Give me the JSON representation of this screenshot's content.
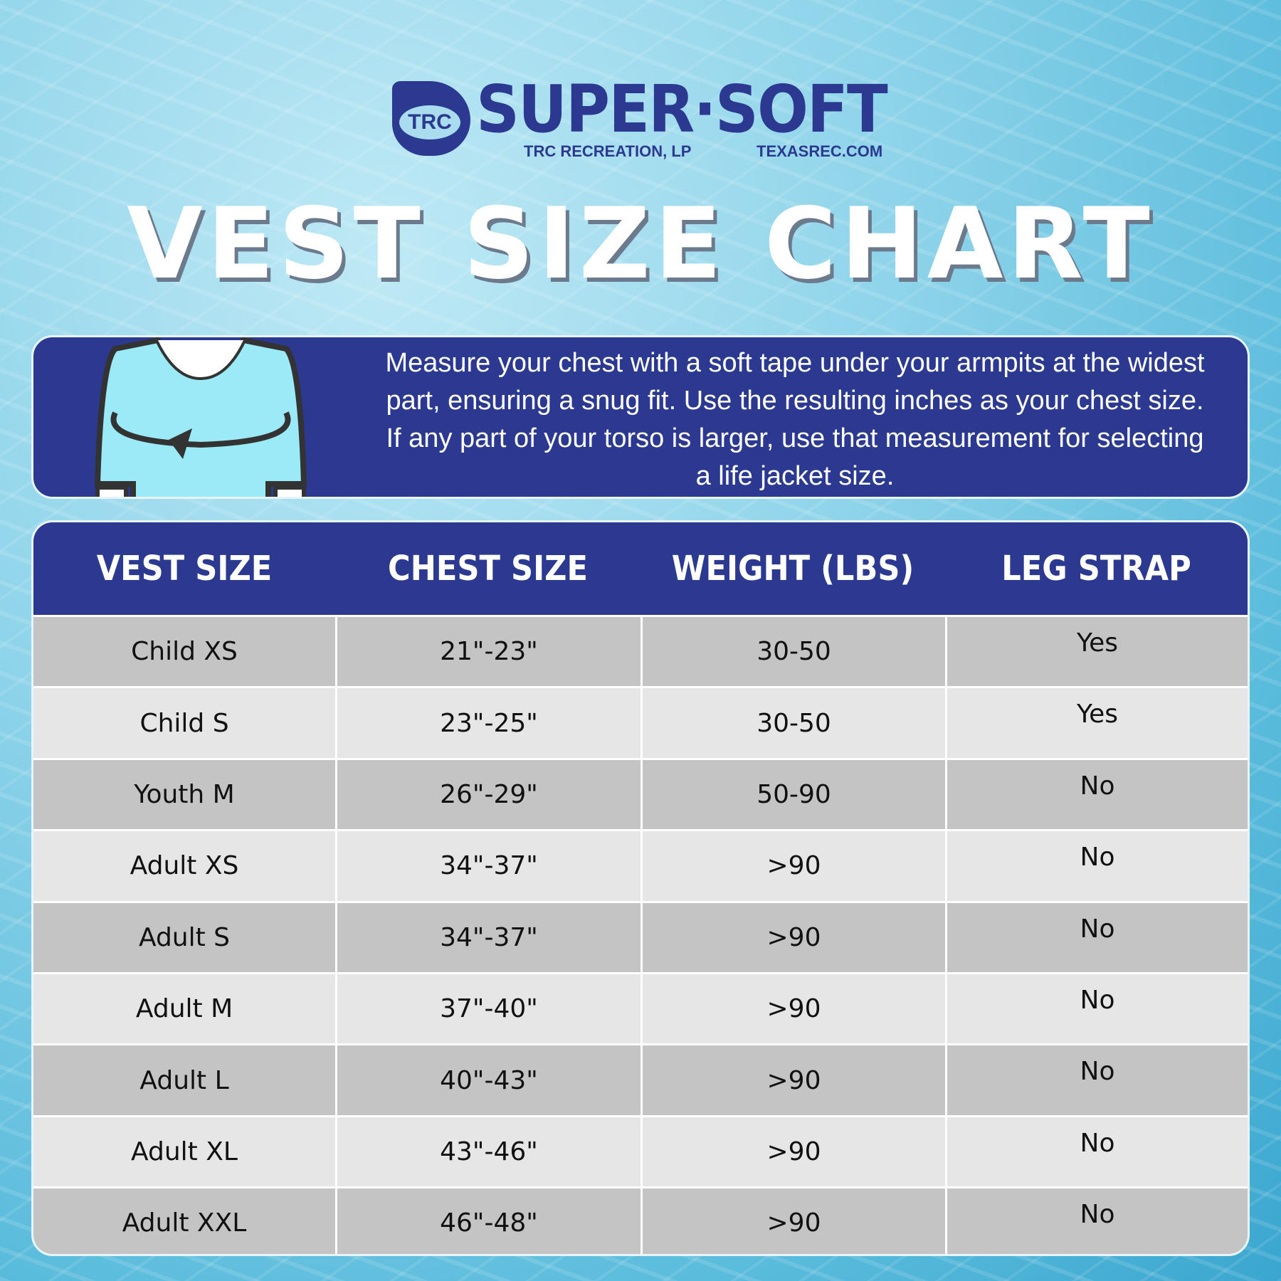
{
  "logo": {
    "mark": "TRC",
    "brand": "SUPER·SOFT",
    "company": "TRC RECREATION, LP",
    "website": "TEXASREC.COM"
  },
  "title": "VEST SIZE CHART",
  "instructions": "Measure your chest with a soft tape under your armpits at the widest part, ensuring a snug fit. Use the resulting inches as your chest size. If any part of your torso is larger, use that measurement for selecting a life jacket size.",
  "colors": {
    "brand_blue": "#2b3990",
    "shirt": "#9aeaf7"
  },
  "table": {
    "headers": [
      "VEST SIZE",
      "CHEST SIZE",
      "WEIGHT (LBS)",
      "LEG STRAP"
    ],
    "rows": [
      [
        "Child XS",
        "21\"-23\"",
        "30-50",
        "Yes"
      ],
      [
        "Child S",
        "23\"-25\"",
        "30-50",
        "Yes"
      ],
      [
        "Youth M",
        "26\"-29\"",
        "50-90",
        "No"
      ],
      [
        "Adult XS",
        "34\"-37\"",
        ">90",
        "No"
      ],
      [
        "Adult S",
        "34\"-37\"",
        ">90",
        "No"
      ],
      [
        "Adult M",
        "37\"-40\"",
        ">90",
        "No"
      ],
      [
        "Adult L",
        "40\"-43\"",
        ">90",
        "No"
      ],
      [
        "Adult XL",
        "43\"-46\"",
        ">90",
        "No"
      ],
      [
        "Adult XXL",
        "46\"-48\"",
        ">90",
        "No"
      ]
    ]
  }
}
